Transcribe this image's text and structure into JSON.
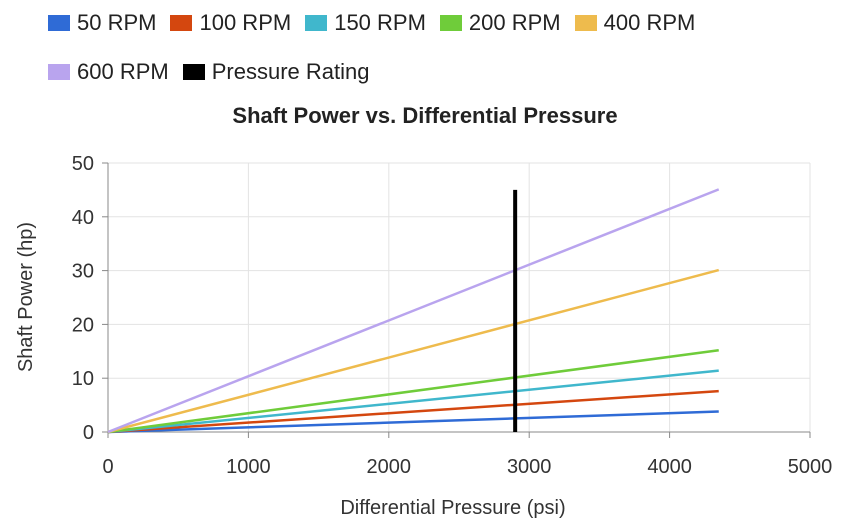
{
  "chart_data": {
    "type": "line",
    "title": "Shaft Power vs. Differential Pressure",
    "xlabel": "Differential Pressure (psi)",
    "ylabel": "Shaft Power (hp)",
    "xlim": [
      0,
      5000
    ],
    "ylim": [
      0,
      50
    ],
    "xticks": [
      0,
      1000,
      2000,
      3000,
      4000,
      5000
    ],
    "yticks": [
      0,
      10,
      20,
      30,
      40,
      50
    ],
    "grid": true,
    "legend_position": "top",
    "series": [
      {
        "name": "50 RPM",
        "color": "#2f6bd6",
        "x": [
          0,
          4350
        ],
        "y": [
          0,
          3.8
        ]
      },
      {
        "name": "100 RPM",
        "color": "#d4470f",
        "x": [
          0,
          4350
        ],
        "y": [
          0,
          7.6
        ]
      },
      {
        "name": "150 RPM",
        "color": "#40b7cc",
        "x": [
          0,
          4350
        ],
        "y": [
          0,
          11.4
        ]
      },
      {
        "name": "200 RPM",
        "color": "#6fcc3a",
        "x": [
          0,
          4350
        ],
        "y": [
          0,
          15.2
        ]
      },
      {
        "name": "400 RPM",
        "color": "#eebb4d",
        "x": [
          0,
          4350
        ],
        "y": [
          0,
          30.1
        ]
      },
      {
        "name": "600 RPM",
        "color": "#b9a4ee",
        "x": [
          0,
          4350
        ],
        "y": [
          0,
          45.1
        ]
      },
      {
        "name": "Pressure Rating",
        "color": "#000000",
        "x": [
          2900,
          2900
        ],
        "y": [
          0,
          45
        ]
      }
    ]
  }
}
